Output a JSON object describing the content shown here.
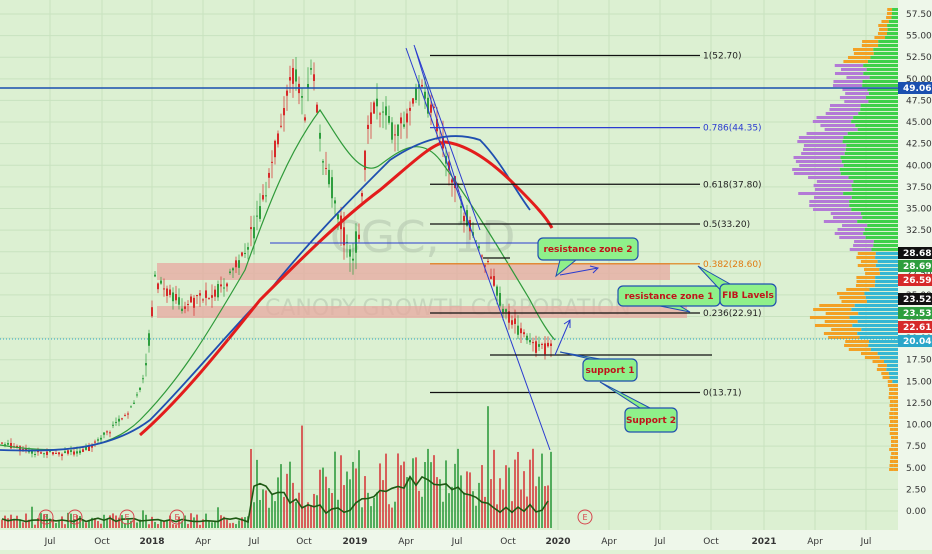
{
  "chart_data": {
    "type": "candlestick",
    "watermark": "CGC, 1D",
    "watermark_sub": "CANOPY GROWTH CORPORATION",
    "x_ticks": [
      "Jul",
      "Oct",
      "2018",
      "Apr",
      "Jul",
      "Oct",
      "2019",
      "Apr",
      "Jul",
      "Oct",
      "2020",
      "Apr",
      "Jul",
      "Oct",
      "2021",
      "Apr",
      "Jul"
    ],
    "y_ticks": [
      "57.50",
      "55.00",
      "52.50",
      "50.00",
      "47.50",
      "45.00",
      "42.50",
      "40.00",
      "37.50",
      "35.00",
      "32.50",
      "30.00",
      "27.50",
      "25.00",
      "22.50",
      "20.00",
      "17.50",
      "15.00",
      "12.50",
      "10.00",
      "7.50",
      "5.00",
      "2.50",
      "0.00"
    ],
    "ylim": [
      -1,
      59
    ],
    "price_badges": [
      {
        "value": "49.06",
        "color": "#1a4fb0"
      },
      {
        "value": "28.68",
        "color": "#111111"
      },
      {
        "value": "28.69",
        "color": "#2e9e3e"
      },
      {
        "value": "26.59",
        "color": "#d62a2a"
      },
      {
        "value": "23.52",
        "color": "#111111"
      },
      {
        "value": "23.53",
        "color": "#2e9e3e"
      },
      {
        "value": "22.61",
        "color": "#d62a2a"
      },
      {
        "value": "20.04",
        "color": "#2aa6c9"
      }
    ],
    "fib_levels": [
      {
        "label": "1(52.70)",
        "value": 52.7,
        "color": "#111111"
      },
      {
        "label": "0.786(44.35)",
        "value": 44.35,
        "color": "#2a3bd0"
      },
      {
        "label": "0.618(37.80)",
        "value": 37.8,
        "color": "#111111"
      },
      {
        "label": "0.5(33.20)",
        "value": 33.2,
        "color": "#111111"
      },
      {
        "label": "0.382(28.60)",
        "value": 28.6,
        "color": "#e07a10"
      },
      {
        "label": "0.236(22.91)",
        "value": 22.91,
        "color": "#111111"
      },
      {
        "label": "0(13.71)",
        "value": 13.71,
        "color": "#111111"
      }
    ],
    "annotations": [
      {
        "id": "resistance-zone-2",
        "text": "resistance zone 2"
      },
      {
        "id": "resistance-zone-1",
        "text": "resistance zone 1"
      },
      {
        "id": "fib-levels",
        "text": "FIB Lavels"
      },
      {
        "id": "support-1",
        "text": "support 1"
      },
      {
        "id": "support-2",
        "text": "Support 2"
      }
    ],
    "earnings_marker": "E",
    "close_price": 20.04,
    "horizontal_line_price": 49.06
  }
}
